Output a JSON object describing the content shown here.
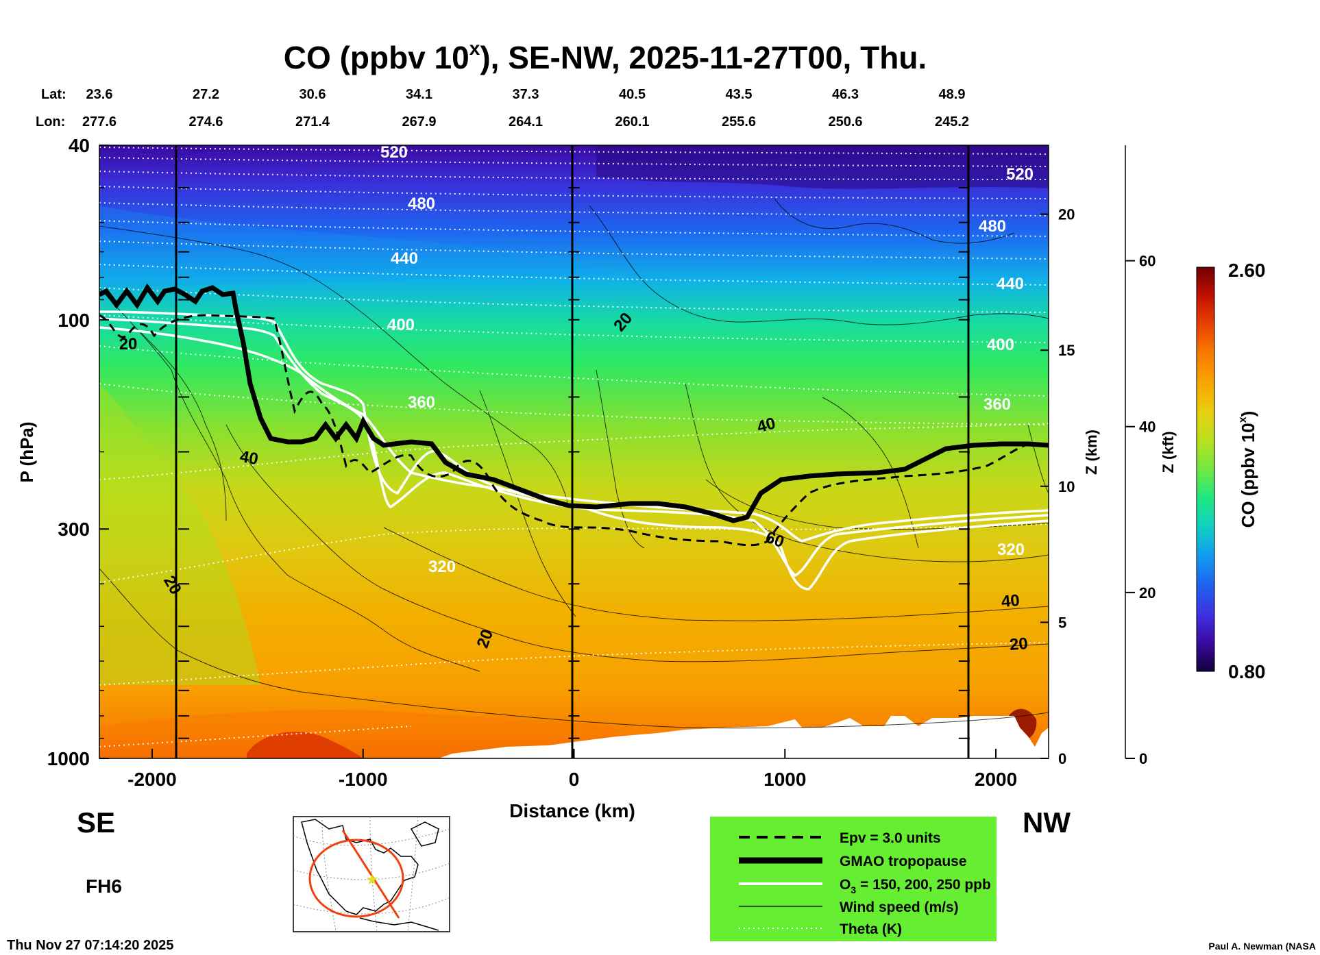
{
  "title": {
    "main": "CO (ppbv 10",
    "sup": "x",
    "rest": "), SE-NW, 2025-11-27T00, Thu."
  },
  "lat_lon": {
    "lat_label": "Lat:",
    "lon_label": "Lon:",
    "lat": [
      "23.6",
      "27.2",
      "30.6",
      "34.1",
      "37.3",
      "40.5",
      "43.5",
      "46.3",
      "48.9"
    ],
    "lon": [
      "277.6",
      "274.6",
      "271.4",
      "267.9",
      "264.1",
      "260.1",
      "255.6",
      "250.6",
      "245.2"
    ]
  },
  "chart_data": {
    "type": "heatmap",
    "variable": "CO (ppbv 10^x)",
    "xlabel": "Distance (km)",
    "ylabel": "P (hPa)",
    "xlim": [
      -2250,
      2250
    ],
    "ylim": [
      1000,
      40
    ],
    "y_scale": "log",
    "x_ticks": [
      -2000,
      -1000,
      0,
      1000,
      2000
    ],
    "y_ticks": [
      40,
      100,
      300,
      1000
    ],
    "z_km_label": "Z (km)",
    "z_km_ticks": [
      0,
      5,
      10,
      15,
      20
    ],
    "z_kft_label": "Z (kft)",
    "z_kft_ticks": [
      0,
      20,
      40,
      60
    ],
    "section_markers_km": [
      -1850,
      0,
      1850
    ],
    "colorbar": {
      "label": "CO (ppbv 10",
      "label_sup": "x",
      "label_end": ")",
      "min": "0.80",
      "max": "2.60",
      "colors": [
        "#10003a",
        "#3a0aa0",
        "#3e30e0",
        "#2060f0",
        "#10a0f0",
        "#10d0c0",
        "#20e880",
        "#70e840",
        "#b8e020",
        "#e8d010",
        "#f8a800",
        "#f87800",
        "#e84000",
        "#c01000",
        "#700000"
      ]
    },
    "theta_labels": [
      "520",
      "480",
      "440",
      "400",
      "360",
      "320",
      "520",
      "480",
      "440",
      "400",
      "360",
      "320"
    ],
    "wind_labels": [
      "20",
      "20",
      "40",
      "20",
      "20",
      "40",
      "60",
      "40",
      "20"
    ],
    "side_left": "SE",
    "side_right": "NW"
  },
  "legend": {
    "epv": "Epv = 3.0 units",
    "tropopause": "GMAO tropopause",
    "o3_pre": "O",
    "o3_sub": "3",
    "o3_post": " = 150, 200, 250 ppb",
    "wind": "Wind speed (m/s)",
    "theta": "Theta (K)"
  },
  "forecast_hour": "FH6",
  "timestamp": "Thu Nov 27 07:14:20 2025",
  "credit": "Paul A. Newman (NASA"
}
